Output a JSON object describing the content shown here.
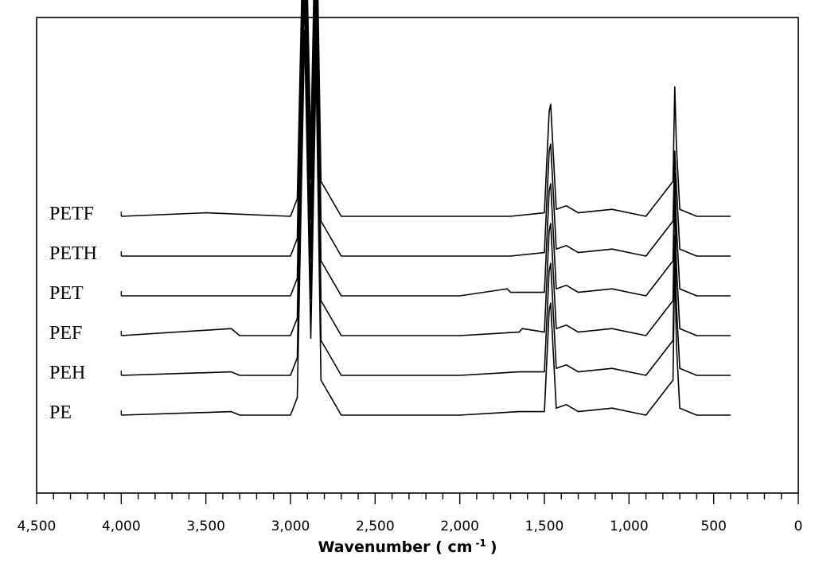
{
  "chart_data": {
    "type": "line",
    "title": "",
    "xlabel": "Wavenumber ( cm -1 )",
    "xlabel_main": "Wavenumber ( cm",
    "xlabel_sup": "-1",
    "xlabel_close": ")",
    "ylabel": "",
    "xlim": [
      4500,
      0
    ],
    "x_reversed": true,
    "x_ticks": [
      4500,
      4000,
      3500,
      3000,
      2500,
      2000,
      1500,
      1000,
      500,
      0
    ],
    "x_tick_labels": [
      "4,500",
      "4,000",
      "3,500",
      "3,000",
      "2,500",
      "2,000",
      "1,500",
      "1,000",
      "500",
      "0"
    ],
    "y_ticks_shown": false,
    "grid": false,
    "legend": "labels-left-of-traces",
    "stacked_offset": true,
    "x_range_measured": [
      4000,
      400
    ],
    "series": [
      {
        "name": "PETF",
        "baseline": 0.25,
        "x": [
          4000,
          3500,
          3000,
          2960,
          2917,
          2880,
          2849,
          2820,
          2700,
          2000,
          1700,
          1500,
          1472,
          1463,
          1430,
          1370,
          1300,
          1100,
          1000,
          900,
          740,
          730,
          720,
          700,
          600,
          400
        ],
        "y": [
          0.0,
          0.01,
          0.0,
          0.05,
          1.0,
          0.2,
          0.95,
          0.1,
          0.0,
          0.0,
          0.0,
          0.01,
          0.3,
          0.32,
          0.02,
          0.03,
          0.01,
          0.02,
          0.01,
          0.0,
          0.1,
          0.37,
          0.2,
          0.02,
          0.0,
          0.0
        ]
      },
      {
        "name": "PETH",
        "baseline": 0.2,
        "x": [
          4000,
          3500,
          3000,
          2960,
          2917,
          2880,
          2849,
          2820,
          2700,
          2000,
          1700,
          1500,
          1472,
          1463,
          1430,
          1370,
          1300,
          1100,
          1000,
          900,
          740,
          730,
          720,
          700,
          600,
          400
        ],
        "y": [
          0.0,
          0.0,
          0.0,
          0.05,
          1.1,
          0.22,
          1.0,
          0.1,
          0.0,
          0.0,
          0.0,
          0.01,
          0.3,
          0.32,
          0.02,
          0.03,
          0.01,
          0.02,
          0.01,
          0.0,
          0.1,
          0.3,
          0.2,
          0.02,
          0.0,
          0.0
        ]
      },
      {
        "name": "PET",
        "baseline": 0.15,
        "x": [
          4000,
          3500,
          3000,
          2960,
          2917,
          2880,
          2849,
          2820,
          2700,
          2000,
          1720,
          1700,
          1500,
          1472,
          1463,
          1430,
          1370,
          1300,
          1100,
          1000,
          900,
          740,
          730,
          720,
          700,
          600,
          400
        ],
        "y": [
          0.0,
          0.0,
          0.0,
          0.05,
          1.1,
          0.22,
          1.0,
          0.1,
          0.0,
          0.0,
          0.02,
          0.01,
          0.01,
          0.3,
          0.32,
          0.02,
          0.03,
          0.01,
          0.02,
          0.01,
          0.0,
          0.1,
          0.35,
          0.2,
          0.02,
          0.0,
          0.0
        ]
      },
      {
        "name": "PEF",
        "baseline": 0.1,
        "x": [
          4000,
          3350,
          3300,
          3000,
          2960,
          2917,
          2880,
          2849,
          2820,
          2700,
          2000,
          1650,
          1630,
          1500,
          1472,
          1463,
          1430,
          1370,
          1300,
          1100,
          1000,
          900,
          740,
          730,
          720,
          700,
          600,
          400
        ],
        "y": [
          0.0,
          0.02,
          0.0,
          0.0,
          0.05,
          1.1,
          0.22,
          1.0,
          0.1,
          0.0,
          0.0,
          0.01,
          0.02,
          0.01,
          0.3,
          0.32,
          0.02,
          0.03,
          0.01,
          0.02,
          0.01,
          0.0,
          0.1,
          0.4,
          0.2,
          0.02,
          0.0,
          0.0
        ]
      },
      {
        "name": "PEH",
        "baseline": 0.05,
        "x": [
          4000,
          3350,
          3300,
          3000,
          2960,
          2917,
          2880,
          2849,
          2820,
          2700,
          2000,
          1650,
          1630,
          1500,
          1472,
          1463,
          1430,
          1370,
          1300,
          1100,
          1000,
          900,
          740,
          730,
          720,
          700,
          600,
          400
        ],
        "y": [
          0.0,
          0.01,
          0.0,
          0.0,
          0.05,
          1.1,
          0.22,
          1.0,
          0.1,
          0.0,
          0.0,
          0.01,
          0.01,
          0.01,
          0.3,
          0.32,
          0.02,
          0.03,
          0.01,
          0.02,
          0.01,
          0.0,
          0.1,
          0.4,
          0.2,
          0.02,
          0.0,
          0.0
        ]
      },
      {
        "name": "PE",
        "baseline": 0.0,
        "x": [
          4000,
          3350,
          3300,
          3000,
          2960,
          2917,
          2880,
          2849,
          2820,
          2700,
          2000,
          1650,
          1630,
          1500,
          1472,
          1463,
          1430,
          1370,
          1300,
          1100,
          1000,
          900,
          740,
          730,
          720,
          700,
          600,
          400
        ],
        "y": [
          0.0,
          0.01,
          0.0,
          0.0,
          0.05,
          1.1,
          0.22,
          1.0,
          0.1,
          0.0,
          0.0,
          0.01,
          0.01,
          0.01,
          0.3,
          0.32,
          0.02,
          0.03,
          0.01,
          0.02,
          0.01,
          0.0,
          0.1,
          0.45,
          0.2,
          0.02,
          0.0,
          0.0
        ]
      }
    ]
  }
}
